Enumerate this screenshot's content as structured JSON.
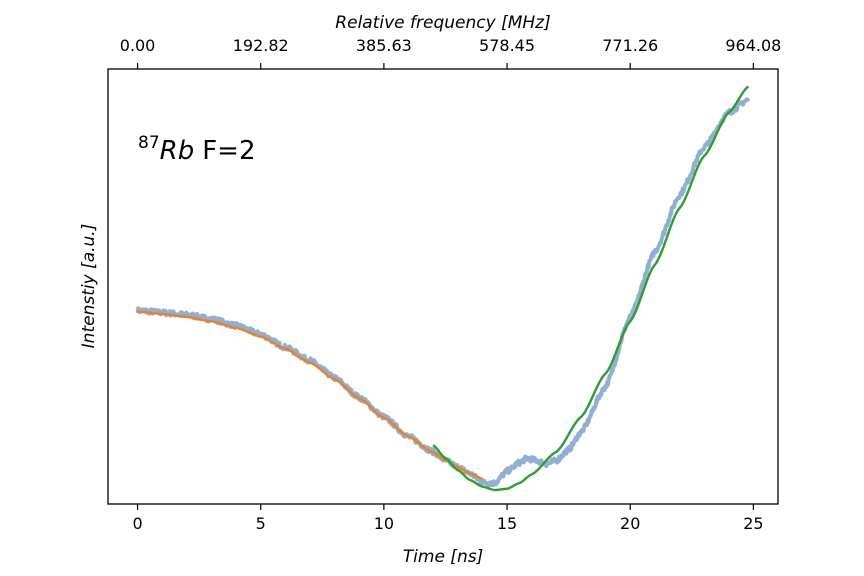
{
  "chart_data": {
    "type": "line",
    "title": "",
    "xlabel": "Time [ns]",
    "ylabel": "Intenstiy [a.u.]",
    "top_xlabel": "Relative frequency [MHz]",
    "xlim": [
      -1.2,
      26
    ],
    "ylim": [
      0,
      1
    ],
    "x_ticks": [
      0,
      5,
      10,
      15,
      20,
      25
    ],
    "x_tick_labels": [
      "0",
      "5",
      "10",
      "15",
      "20",
      "25"
    ],
    "top_x_ticks": [
      0,
      5,
      10,
      15,
      20,
      25
    ],
    "top_x_tick_labels": [
      "0.00",
      "192.82",
      "385.63",
      "578.45",
      "771.26",
      "964.08"
    ],
    "y_ticks_shown": false,
    "grid": false,
    "legend": "none",
    "annotation": {
      "superscript": "87",
      "species": "Rb",
      "text": "F=2"
    },
    "series": [
      {
        "role": "measured",
        "color": "#8fb0d4",
        "x": [
          0,
          1,
          2,
          3,
          4,
          5,
          6,
          7,
          8,
          9,
          10,
          11,
          12,
          12.5,
          13,
          13.5,
          14,
          14.5,
          15,
          15.5,
          15.8,
          16.2,
          16.6,
          17,
          17.5,
          18,
          19,
          20,
          21,
          22,
          23,
          24,
          24.8
        ],
        "y": [
          0.445,
          0.44,
          0.435,
          0.425,
          0.41,
          0.39,
          0.36,
          0.33,
          0.29,
          0.245,
          0.2,
          0.155,
          0.12,
          0.1,
          0.085,
          0.07,
          0.05,
          0.048,
          0.075,
          0.095,
          0.105,
          0.1,
          0.092,
          0.1,
          0.125,
          0.165,
          0.27,
          0.43,
          0.58,
          0.71,
          0.82,
          0.9,
          0.93
        ],
        "noise": 0.006
      },
      {
        "role": "fit-low",
        "color": "#f07f1f",
        "x": [
          0,
          1,
          2,
          3,
          4,
          5,
          6,
          7,
          8,
          9,
          10,
          11,
          12,
          12.5,
          13,
          13.5,
          14
        ],
        "y": [
          0.442,
          0.437,
          0.43,
          0.42,
          0.405,
          0.385,
          0.357,
          0.325,
          0.287,
          0.243,
          0.198,
          0.155,
          0.118,
          0.1,
          0.085,
          0.07,
          0.058
        ]
      },
      {
        "role": "fit-high",
        "color": "#2ca02c",
        "x": [
          12,
          12.5,
          13,
          13.5,
          14,
          14.5,
          15,
          15.5,
          16,
          17,
          18,
          19,
          20,
          21,
          22,
          23,
          24,
          24.8
        ],
        "y": [
          0.135,
          0.105,
          0.078,
          0.055,
          0.04,
          0.032,
          0.035,
          0.048,
          0.068,
          0.12,
          0.2,
          0.3,
          0.42,
          0.55,
          0.68,
          0.8,
          0.9,
          0.96
        ]
      }
    ]
  }
}
